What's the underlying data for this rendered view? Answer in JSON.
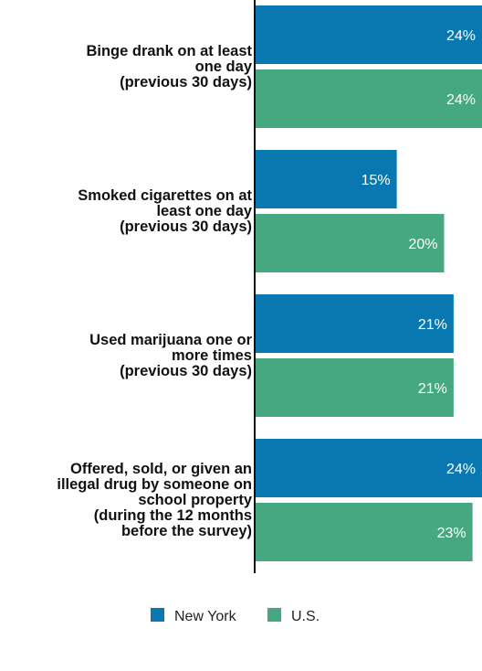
{
  "header_fragment": "",
  "chart_data": {
    "type": "bar",
    "orientation": "horizontal",
    "categories": [
      [
        "Binge drank on at least",
        "one day",
        "(previous 30 days)"
      ],
      [
        "Smoked cigarettes on at",
        "least one day",
        "(previous 30 days)"
      ],
      [
        "Used marijuana one or",
        "more times",
        "(previous 30 days)"
      ],
      [
        "Offered, sold, or given an",
        "illegal drug by someone on",
        "school property",
        "(during the 12 months",
        "before the survey)"
      ]
    ],
    "series": [
      {
        "name": "New York",
        "color": "#0a78b0",
        "values": [
          24,
          15,
          21,
          24
        ],
        "labels": [
          "24%",
          "15%",
          "21%",
          "24%"
        ]
      },
      {
        "name": "U.S.",
        "color": "#45a880",
        "values": [
          24,
          20,
          21,
          23
        ],
        "labels": [
          "24%",
          "20%",
          "21%",
          "23%"
        ]
      }
    ],
    "xlim": [
      0,
      24
    ],
    "unit": "%",
    "grid": false,
    "legend": "bottom-center",
    "title": "",
    "xlabel": "",
    "ylabel": ""
  }
}
